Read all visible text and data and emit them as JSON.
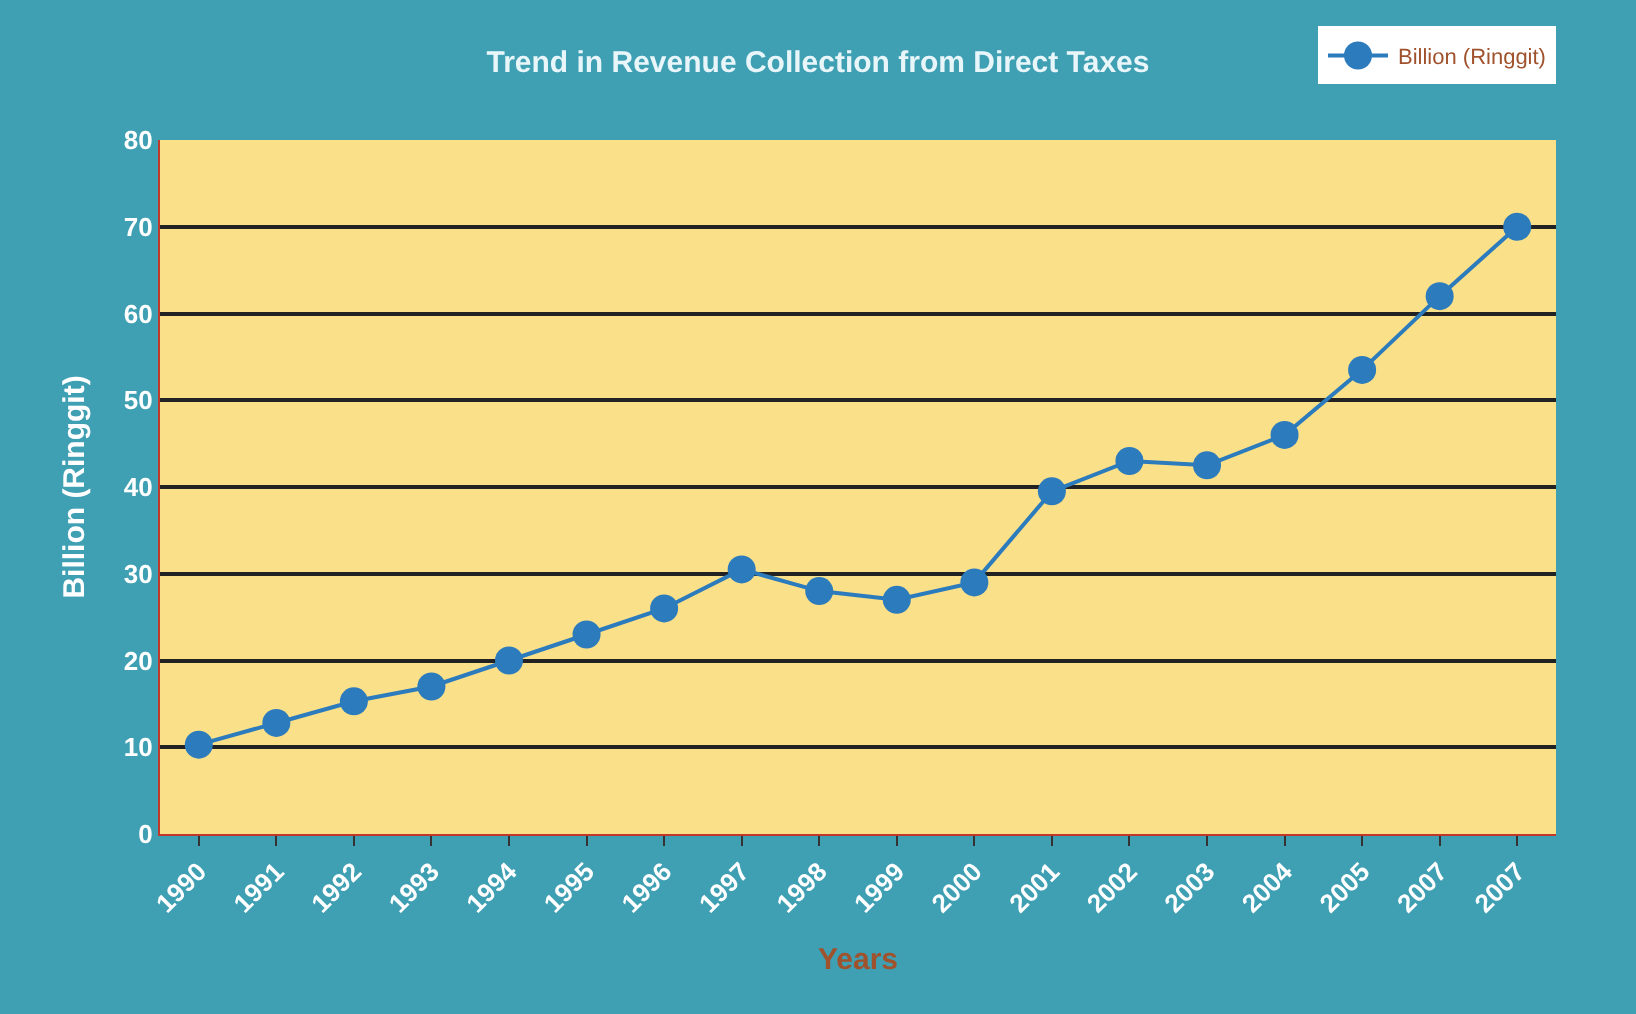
{
  "chart_data": {
    "type": "line",
    "title": "Trend in Revenue Collection from Direct Taxes",
    "xlabel": "Years",
    "ylabel": "Billion (Ringgit)",
    "categories": [
      "1990",
      "1991",
      "1992",
      "1993",
      "1994",
      "1995",
      "1996",
      "1997",
      "1998",
      "1999",
      "2000",
      "2001",
      "2002",
      "2003",
      "2004",
      "2005",
      "2007",
      "2007"
    ],
    "series": [
      {
        "name": "Billion (Ringgit)",
        "color": "#2b7bbd",
        "values": [
          10.3,
          12.8,
          15.3,
          17,
          20,
          23,
          26,
          30.5,
          28,
          27,
          29,
          39.5,
          43,
          42.5,
          46,
          53.5,
          62,
          70
        ]
      }
    ],
    "ylim": [
      0,
      80
    ],
    "yticks": [
      0,
      10,
      20,
      30,
      40,
      50,
      60,
      70,
      80
    ],
    "grid": "y",
    "legend": "top right",
    "marker": "circle",
    "line_style": "solid"
  }
}
